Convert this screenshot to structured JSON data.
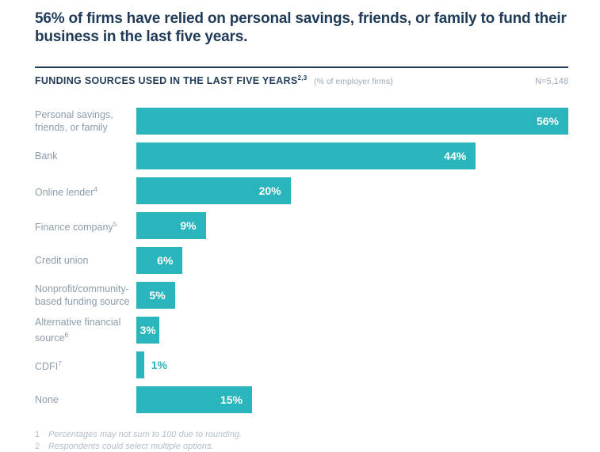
{
  "page": {
    "title": "56% of firms have relied on personal savings, friends, or family to fund their business in the last five years.",
    "chart_header": {
      "title": "FUNDING SOURCES USED IN THE LAST FIVE YEARS",
      "title_sup": "2,3",
      "subtitle": "(% of employer firms)",
      "sample_size": "N=5,148"
    },
    "footnotes": [
      {
        "num": "1",
        "text": "Percentages may not sum to 100 due to rounding."
      },
      {
        "num": "2",
        "text": "Respondents could select multiple options."
      }
    ]
  },
  "colors": {
    "bar_teal": "#2ab5bc",
    "heading_navy": "#1f3b57",
    "label_gray": "#8c9cab",
    "subtle_gray": "#9aa9b7",
    "footnote_gray": "#b2c0cd"
  },
  "chart_data": {
    "type": "bar",
    "orientation": "horizontal",
    "title": "FUNDING SOURCES USED IN THE LAST FIVE YEARS (% of employer firms)",
    "sample_size": "N=5,148",
    "value_suffix": "%",
    "xlim": [
      0,
      56
    ],
    "grid": false,
    "legend": false,
    "categories": [
      "Personal savings, friends, or family",
      "Bank",
      "Online lender",
      "Finance company",
      "Credit union",
      "Nonprofit/community-based funding source",
      "Alternative financial source",
      "CDFI",
      "None"
    ],
    "values": [
      56,
      44,
      20,
      9,
      6,
      5,
      3,
      1,
      15
    ],
    "rows": [
      {
        "label": "Personal savings, friends, or family",
        "sup": "",
        "value": 56,
        "value_label": "56%",
        "value_align": "right"
      },
      {
        "label": "Bank",
        "sup": "",
        "value": 44,
        "value_label": "44%",
        "value_align": "right"
      },
      {
        "label": "Online lender",
        "sup": "4",
        "value": 20,
        "value_label": "20%",
        "value_align": "right"
      },
      {
        "label": "Finance company",
        "sup": "5",
        "value": 9,
        "value_label": "9%",
        "value_align": "right"
      },
      {
        "label": "Credit union",
        "sup": "",
        "value": 6,
        "value_label": "6%",
        "value_align": "right"
      },
      {
        "label": "Nonprofit/community-based funding source",
        "sup": "",
        "value": 5,
        "value_label": "5%",
        "value_align": "right"
      },
      {
        "label": "Alternative financial source",
        "sup": "6",
        "value": 3,
        "value_label": "3%",
        "value_align": "center"
      },
      {
        "label": "CDFI",
        "sup": "7",
        "value": 1,
        "value_label": "1%",
        "value_align": "outside"
      },
      {
        "label": "None",
        "sup": "",
        "value": 15,
        "value_label": "15%",
        "value_align": "right"
      }
    ]
  }
}
